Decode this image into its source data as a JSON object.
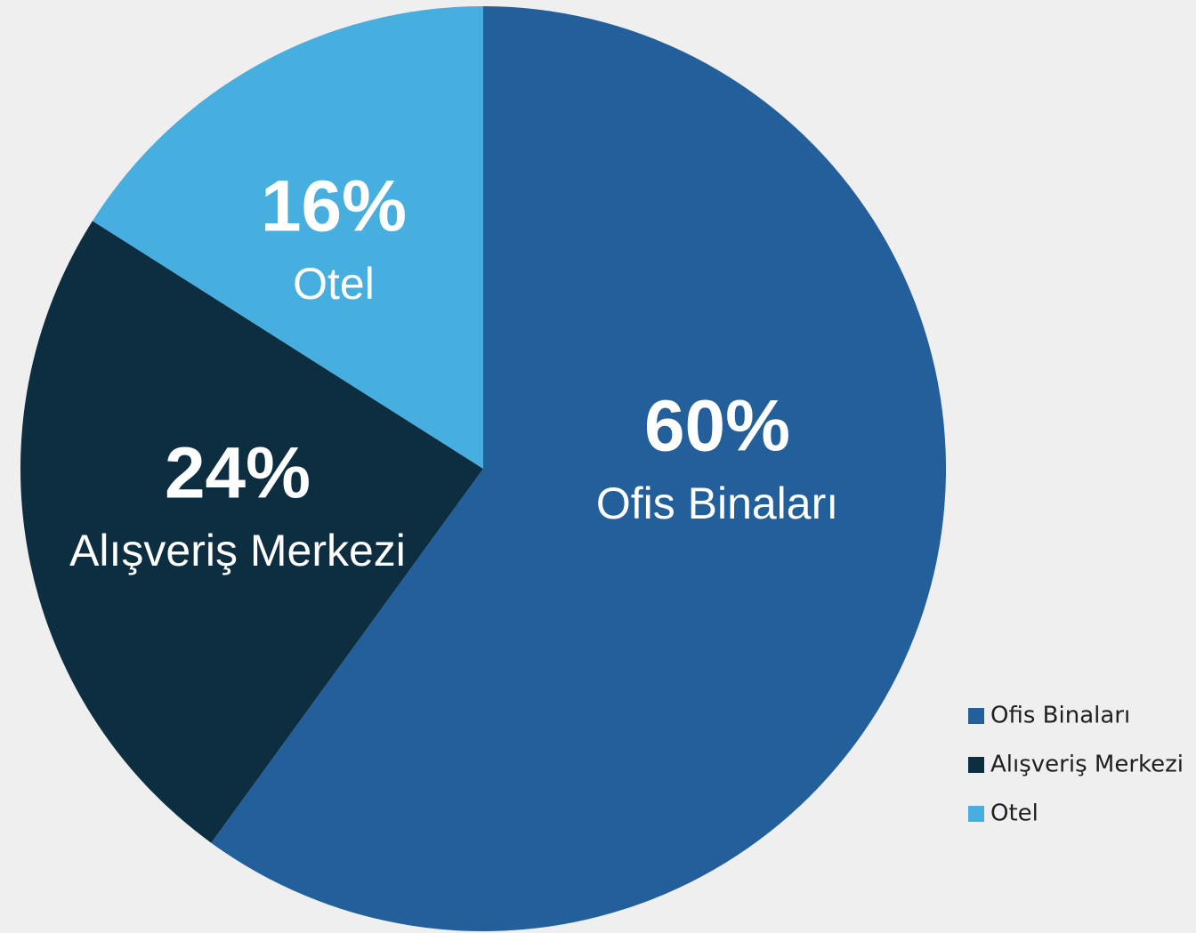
{
  "chart_data": {
    "type": "pie",
    "categories": [
      "Ofis Binaları",
      "Alışveriş Merkezi",
      "Otel"
    ],
    "values": [
      60,
      24,
      16
    ],
    "value_labels": [
      "60%",
      "24%",
      "16%"
    ],
    "colors": [
      "#23609b",
      "#0d2e41",
      "#47aee0"
    ],
    "legend": "lower right"
  }
}
